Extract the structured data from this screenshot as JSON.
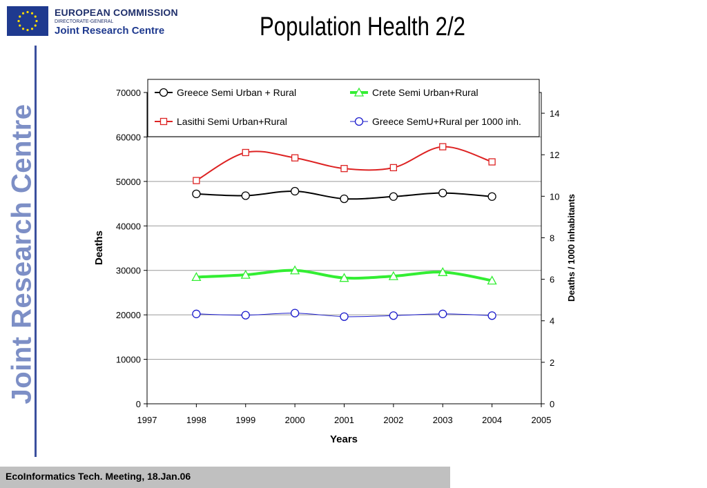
{
  "header": {
    "org_name": "EUROPEAN COMMISSION",
    "directorate": "DIRECTORATE-GENERAL",
    "centre": "Joint Research Centre",
    "side_banner": "Joint Research Centre"
  },
  "slide": {
    "title": "Population Health 2/2"
  },
  "footer": {
    "text": "EcoInformatics Tech. Meeting, 18.Jan.06"
  },
  "colors": {
    "flag_blue": "#1f3a8f",
    "flag_stars": "#ffdd00",
    "banner_text": "#7d8fc6",
    "footer_bg": "#c0c0c0"
  },
  "chart_data": {
    "type": "line",
    "xlabel": "Years",
    "ylabel": "Deaths",
    "y2label": "Deaths / 1000 inhabitants",
    "xlim": [
      1997,
      2005
    ],
    "ylim": [
      0,
      70000
    ],
    "y2lim": [
      0,
      15
    ],
    "xticks": [
      1997,
      1998,
      1999,
      2000,
      2001,
      2002,
      2003,
      2004,
      2005
    ],
    "yticks": [
      0,
      10000,
      20000,
      30000,
      40000,
      50000,
      60000,
      70000
    ],
    "y2ticks": [
      0,
      2,
      4,
      6,
      8,
      10,
      12,
      14
    ],
    "grid": "horizontal",
    "legend_position": "top",
    "series": [
      {
        "name": "Greece Semi Urban + Rural",
        "axis": "left",
        "color": "#000000",
        "marker": "circle",
        "width": 2,
        "x": [
          1998,
          1999,
          2000,
          2001,
          2002,
          2003,
          2004
        ],
        "values": [
          47200,
          46800,
          47800,
          46100,
          46600,
          47400,
          46600
        ]
      },
      {
        "name": "Crete Semi Urban+Rural",
        "axis": "left",
        "color": "#33ee33",
        "marker": "triangle",
        "width": 4,
        "x": [
          1998,
          1999,
          2000,
          2001,
          2002,
          2003,
          2004
        ],
        "values": [
          28500,
          29000,
          30000,
          28300,
          28700,
          29600,
          27700
        ]
      },
      {
        "name": "Lasithi Semi Urban+Rural",
        "axis": "left",
        "color": "#dd2222",
        "marker": "square",
        "width": 2,
        "x": [
          1998,
          1999,
          2000,
          2001,
          2002,
          2003,
          2004
        ],
        "values": [
          50200,
          56500,
          55300,
          52900,
          53100,
          57800,
          54400
        ]
      },
      {
        "name": "Greece SemU+Rural per 1000 inh.",
        "axis": "right",
        "color": "#1a1acc",
        "marker": "circle",
        "width": 1,
        "x": [
          1998,
          1999,
          2000,
          2001,
          2002,
          2003,
          2004
        ],
        "values": [
          4.33,
          4.27,
          4.37,
          4.2,
          4.25,
          4.33,
          4.25
        ]
      }
    ]
  }
}
